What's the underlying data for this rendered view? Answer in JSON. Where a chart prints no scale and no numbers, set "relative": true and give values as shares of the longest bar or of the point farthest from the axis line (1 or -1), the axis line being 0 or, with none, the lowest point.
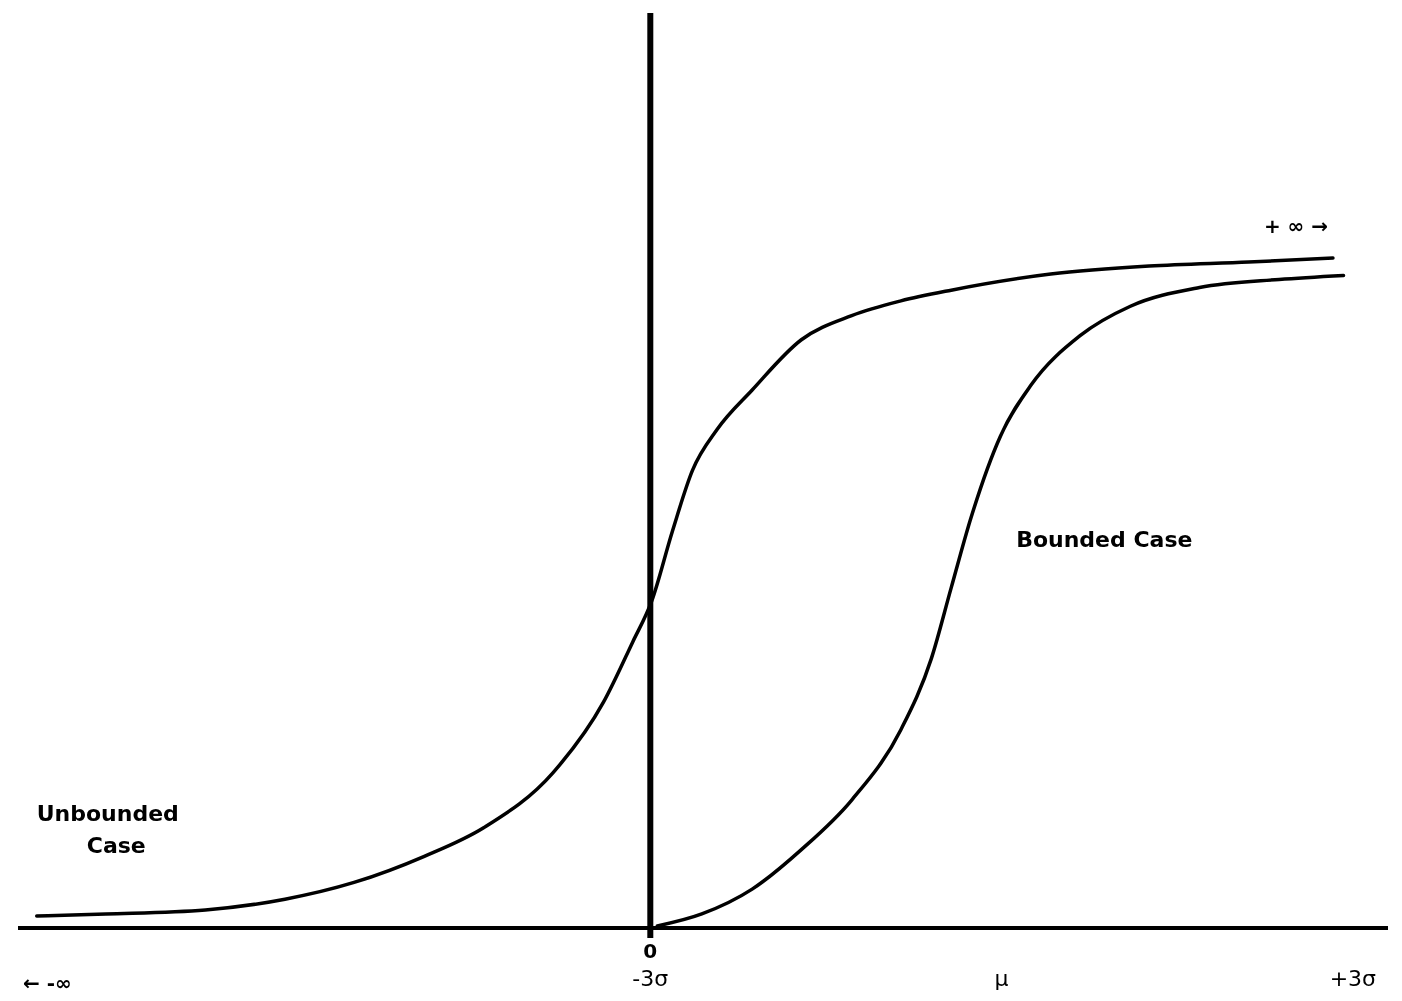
{
  "chart_data": {
    "type": "line",
    "relative": true,
    "legend": false,
    "marker": "none",
    "line_style": "solid",
    "xlim": [
      -8.4,
      3.3
    ],
    "xticks": [
      {
        "value": -3,
        "label": "-3σ"
      },
      {
        "value": 0,
        "label": "μ"
      },
      {
        "value": 3,
        "label": "+3σ"
      }
    ],
    "ref_lines": [
      {
        "axis": "x",
        "value": -3,
        "color": "#000000"
      }
    ],
    "annotations": [
      "0",
      "← -∞",
      "+ ∞ →"
    ],
    "series": [
      {
        "name": "Unbounded Case",
        "color": "#000000",
        "x": [
          -8.24,
          -7.65,
          -6.8,
          -6.12,
          -5.53,
          -4.93,
          -4.42,
          -3.83,
          -3.4,
          -3.15,
          -2.99,
          -2.81,
          -2.64,
          -2.43,
          -2.13,
          -1.71,
          -1.28,
          -0.86,
          -0.43,
          0.42,
          1.26,
          2.11,
          2.83
        ],
        "values": [
          0.018,
          0.021,
          0.027,
          0.043,
          0.068,
          0.107,
          0.15,
          0.232,
          0.337,
          0.427,
          0.487,
          0.593,
          0.683,
          0.744,
          0.803,
          0.878,
          0.914,
          0.936,
          0.952,
          0.976,
          0.988,
          0.994,
          1
        ]
      },
      {
        "name": "Bounded Case",
        "color": "#000000",
        "x": [
          -2.94,
          -2.56,
          -2.13,
          -1.71,
          -1.28,
          -0.86,
          -0.6,
          -0.43,
          -0.26,
          -0.01,
          0.25,
          0.67,
          1.1,
          1.69,
          2.37,
          2.92
        ],
        "values": [
          0.003,
          0.021,
          0.058,
          0.117,
          0.191,
          0.296,
          0.402,
          0.508,
          0.613,
          0.734,
          0.81,
          0.884,
          0.928,
          0.956,
          0.968,
          0.974
        ]
      }
    ]
  }
}
